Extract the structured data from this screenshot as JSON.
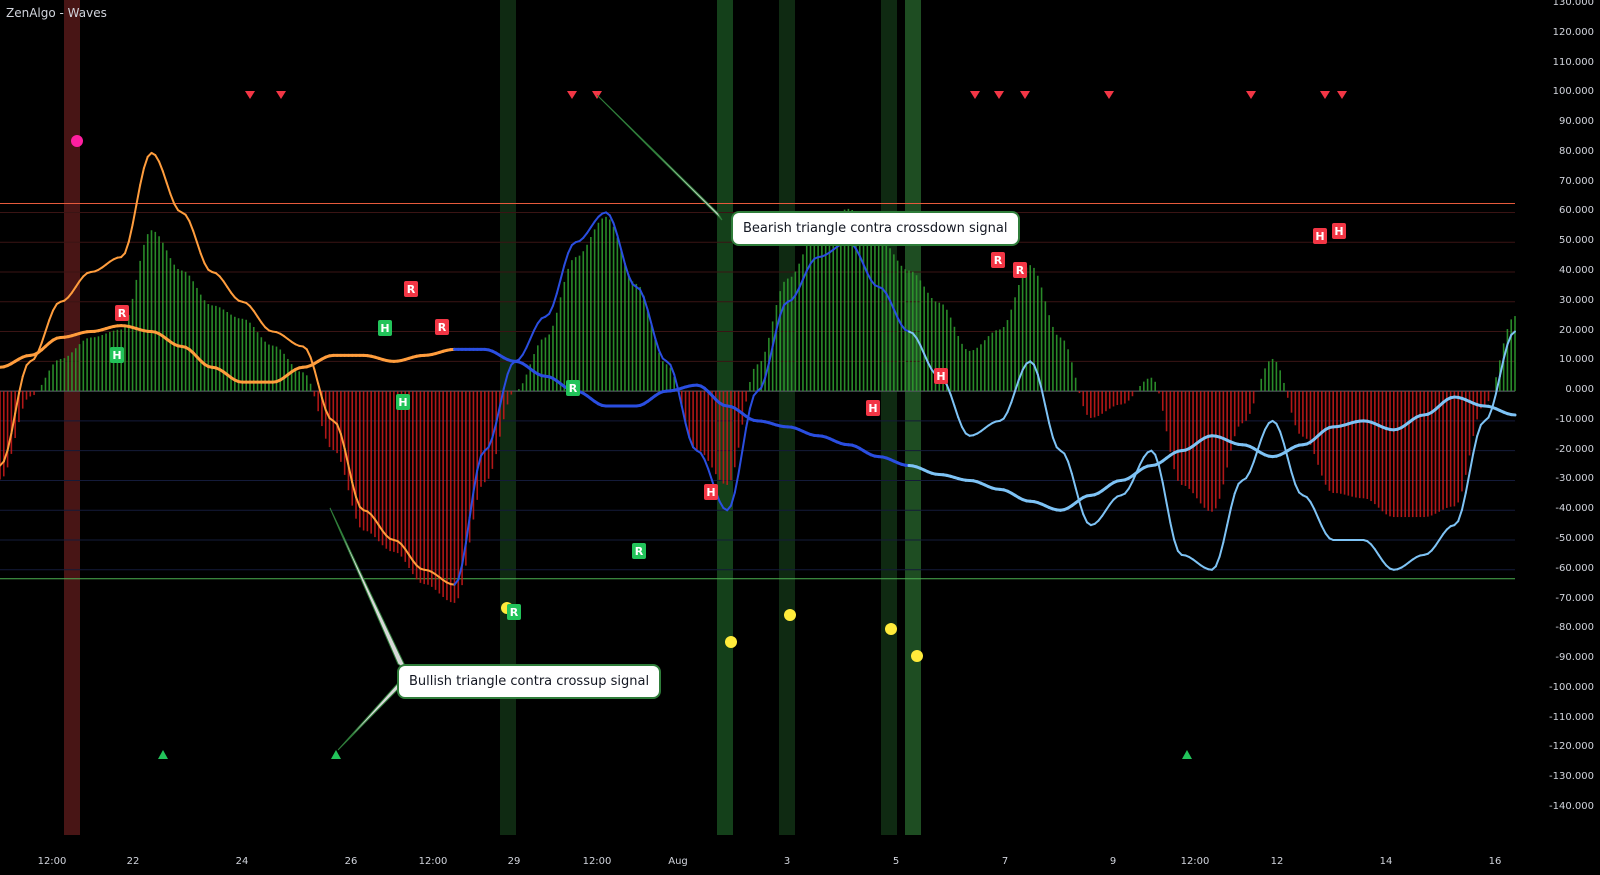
{
  "app_title": "ZenAlgo - Waves",
  "colors": {
    "background": "#000000",
    "upper_line": "#e65a3c",
    "lower_line": "#4caf50",
    "bull_hist": "#2e9a2e",
    "bear_hist": "#c41a1a",
    "orange": "#ff9d3d",
    "light_blue": "#7ec3f5",
    "dark_blue": "#2a4ee0",
    "signal_red": "#f23645",
    "signal_green": "#22c35a",
    "dot_yellow": "#ffeb3b",
    "dot_magenta": "#ff1fa0"
  },
  "annotations": {
    "bearish": "Bearish triangle contra crossdown signal",
    "bullish": "Bullish triangle contra crossup signal"
  },
  "y_axis": {
    "ticks": [
      "130.000",
      "120.000",
      "110.000",
      "100.000",
      "90.000",
      "80.000",
      "70.000",
      "60.000",
      "50.000",
      "40.000",
      "30.000",
      "20.000",
      "10.000",
      "0.000",
      "-10.000",
      "-20.000",
      "-30.000",
      "-40.000",
      "-50.000",
      "-60.000",
      "-70.000",
      "-80.000",
      "-90.000",
      "-100.000",
      "-110.000",
      "-120.000",
      "-130.000",
      "-140.000"
    ]
  },
  "x_axis": {
    "ticks": [
      "12:00",
      "22",
      "24",
      "26",
      "12:00",
      "29",
      "12:00",
      "Aug",
      "3",
      "5",
      "7",
      "9",
      "12:00",
      "12",
      "14",
      "16"
    ]
  },
  "chart_data": {
    "type": "line",
    "title": "ZenAlgo - Waves",
    "ylim": [
      -140,
      130
    ],
    "levels": {
      "upper": 63,
      "lower": -63
    },
    "marker_labels": {
      "hidden": "H",
      "regular": "R"
    },
    "wave": {
      "name": "",
      "x": [
        0,
        2,
        4,
        6,
        8,
        10,
        12,
        14,
        16,
        18,
        20,
        22,
        24,
        26,
        28,
        30,
        32,
        34,
        36,
        38,
        40,
        42,
        44,
        46,
        48,
        50,
        52,
        54,
        56,
        58,
        60,
        62,
        64,
        66,
        68,
        70,
        72,
        74,
        76,
        78,
        80,
        82,
        84,
        86,
        88,
        90,
        92,
        94,
        96,
        98,
        100
      ],
      "values": [
        -25,
        10,
        30,
        40,
        45,
        80,
        60,
        40,
        30,
        20,
        15,
        -10,
        -40,
        -50,
        -60,
        -65,
        -20,
        10,
        25,
        50,
        60,
        35,
        10,
        -20,
        -40,
        0,
        30,
        45,
        50,
        35,
        20,
        5,
        -15,
        -10,
        10,
        -20,
        -45,
        -35,
        -20,
        -55,
        -60,
        -30,
        -10,
        -35,
        -50,
        -50,
        -60,
        -55,
        -45,
        -10,
        20
      ]
    },
    "signal": {
      "name": "",
      "values": [
        8,
        12,
        18,
        20,
        22,
        20,
        15,
        8,
        3,
        3,
        8,
        12,
        12,
        10,
        12,
        14,
        14,
        10,
        5,
        0,
        -5,
        -5,
        0,
        2,
        -5,
        -10,
        -12,
        -15,
        -18,
        -22,
        -25,
        -28,
        -30,
        -33,
        -37,
        -40,
        -35,
        -30,
        -25,
        -20,
        -15,
        -18,
        -22,
        -18,
        -12,
        -10,
        -13,
        -8,
        -2,
        -5,
        -8
      ]
    },
    "hidden_divergence_markers": 6,
    "regular_divergence_markers": 9,
    "bearish_triangles_x_count": 13,
    "bullish_triangles_x_count": 3
  }
}
